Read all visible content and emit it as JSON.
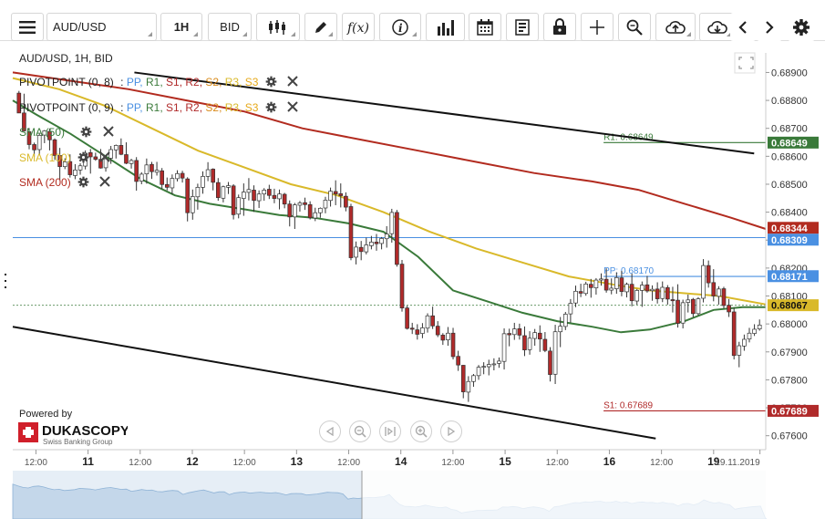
{
  "toolbar": {
    "menu_icon": "hamburger-icon",
    "symbol": "AUD/USD",
    "interval": "1H",
    "price_type": "BID",
    "icons": [
      "candle-type-icon",
      "pencil-icon",
      "function-icon",
      "info-icon",
      "bar-chart-icon",
      "calendar-icon",
      "document-icon",
      "lock-icon",
      "crosshair-icon",
      "zoom-icon",
      "cloud-upload-icon",
      "cloud-download-icon",
      "chevron-left-icon",
      "chevron-right-icon",
      "gear-icon"
    ]
  },
  "legend": {
    "title": "AUD/USD, 1H, BID",
    "pivot1": {
      "name": "PIVOTPOINT (0, 8)",
      "sep": ":",
      "pp": "PP,",
      "r1": "R1,",
      "s1": "S1,",
      "r2": "R2,",
      "s2": "S2,",
      "r3": "R3,",
      "s3": "S3"
    },
    "pivot2": {
      "name": "PIVOTPOINT (0, 9)",
      "sep": ":",
      "pp": "PP,",
      "r1": "R1,",
      "s1": "S1,",
      "r2": "R2,",
      "s2": "S2,",
      "r3": "R3,",
      "s3": "S3"
    },
    "sma50": "SMA (50)",
    "sma100": "SMA (100)",
    "sma200": "SMA (200)"
  },
  "branding": {
    "powered_by": "Powered by",
    "brand": "DUKASCOPY",
    "tagline": "Swiss Banking Group"
  },
  "colors": {
    "up": "#ffffff",
    "down": "#b02a2a",
    "wick": "#333333",
    "sma50": "#3a7a3a",
    "sma100": "#d9b92a",
    "sma200": "#b22b1f",
    "channel": "#111111",
    "pp": "#4a90e2",
    "r1": "#3a7a3a",
    "s1": "#b02a2a"
  },
  "chart_data": {
    "type": "candlestick",
    "ylim": [
      0.6755,
      0.6897
    ],
    "xlim": [
      0,
      130
    ],
    "y_ticks": [
      "0.68900",
      "0.68800",
      "0.68700",
      "0.68600",
      "0.68500",
      "0.68400",
      "0.68300",
      "0.68200",
      "0.68100",
      "0.68000",
      "0.67900",
      "0.67800",
      "0.67700",
      "0.67600"
    ],
    "x_labels": [
      {
        "label": "12:00",
        "x": 4
      },
      {
        "label": "11",
        "x": 13
      },
      {
        "label": "12:00",
        "x": 22
      },
      {
        "label": "12",
        "x": 31
      },
      {
        "label": "12:00",
        "x": 40
      },
      {
        "label": "13",
        "x": 49
      },
      {
        "label": "12:00",
        "x": 58
      },
      {
        "label": "14",
        "x": 67
      },
      {
        "label": "12:00",
        "x": 76
      },
      {
        "label": "15",
        "x": 85
      },
      {
        "label": "12:00",
        "x": 94
      },
      {
        "label": "16",
        "x": 103
      },
      {
        "label": "12:00",
        "x": 112
      },
      {
        "label": "19",
        "x": 121
      },
      {
        "label": "19.11.2019",
        "x": 129
      }
    ],
    "price_tags": [
      {
        "value": "0.68649",
        "color": "#3a7a3a"
      },
      {
        "value": "0.68344",
        "color": "#b22b1f"
      },
      {
        "value": "0.68309",
        "color": "#4a90e2"
      },
      {
        "value": "0.68171",
        "color": "#4a90e2"
      },
      {
        "value": "0.68067",
        "color": "#d9b92a"
      },
      {
        "value": "0.67689",
        "color": "#b02a2a"
      }
    ],
    "levels": [
      {
        "label": "R1: 0.68649",
        "value": 0.68649,
        "from": 102,
        "color": "#3a7a3a"
      },
      {
        "label": "PP: 0.68170",
        "value": 0.6817,
        "from": 102,
        "color": "#4a90e2"
      },
      {
        "label": "S1: 0.67689",
        "value": 0.67689,
        "from": 102,
        "color": "#b02a2a"
      }
    ],
    "hline": 0.68309,
    "current": 0.68067,
    "channel_upper": [
      [
        21,
        0.689
      ],
      [
        128,
        0.6861
      ]
    ],
    "channel_lower": [
      [
        0,
        0.6799
      ],
      [
        111,
        0.6759
      ]
    ],
    "sma50": [
      [
        0,
        0.688
      ],
      [
        4,
        0.6875
      ],
      [
        10,
        0.6868
      ],
      [
        16,
        0.686
      ],
      [
        22,
        0.6852
      ],
      [
        28,
        0.6846
      ],
      [
        34,
        0.6843
      ],
      [
        40,
        0.6841
      ],
      [
        46,
        0.6839
      ],
      [
        52,
        0.6838
      ],
      [
        58,
        0.6836
      ],
      [
        64,
        0.6833
      ],
      [
        70,
        0.6824
      ],
      [
        76,
        0.6812
      ],
      [
        82,
        0.6808
      ],
      [
        88,
        0.6804
      ],
      [
        94,
        0.6801
      ],
      [
        100,
        0.6799
      ],
      [
        105,
        0.6797
      ],
      [
        110,
        0.6798
      ],
      [
        116,
        0.6801
      ],
      [
        121,
        0.6805
      ],
      [
        126,
        0.6806
      ],
      [
        130,
        0.6806
      ]
    ],
    "sma100": [
      [
        0,
        0.6888
      ],
      [
        8,
        0.6884
      ],
      [
        16,
        0.6878
      ],
      [
        24,
        0.687
      ],
      [
        32,
        0.6862
      ],
      [
        40,
        0.6856
      ],
      [
        48,
        0.685
      ],
      [
        56,
        0.6846
      ],
      [
        64,
        0.684
      ],
      [
        72,
        0.6833
      ],
      [
        80,
        0.6827
      ],
      [
        88,
        0.6822
      ],
      [
        96,
        0.6817
      ],
      [
        104,
        0.6814
      ],
      [
        110,
        0.6812
      ],
      [
        116,
        0.6811
      ],
      [
        122,
        0.681
      ],
      [
        130,
        0.6807
      ]
    ],
    "sma200": [
      [
        0,
        0.689
      ],
      [
        10,
        0.6887
      ],
      [
        20,
        0.6884
      ],
      [
        30,
        0.688
      ],
      [
        40,
        0.6876
      ],
      [
        50,
        0.687
      ],
      [
        60,
        0.6866
      ],
      [
        70,
        0.6862
      ],
      [
        80,
        0.6858
      ],
      [
        90,
        0.6854
      ],
      [
        100,
        0.6851
      ],
      [
        108,
        0.6848
      ],
      [
        116,
        0.6843
      ],
      [
        124,
        0.6838
      ],
      [
        130,
        0.6834
      ]
    ],
    "candles": [
      [
        0.68826,
        0.68834,
        0.68758,
        0.68755
      ],
      [
        0.68755,
        0.68824,
        0.68689,
        0.68691
      ],
      [
        0.68688,
        0.68701,
        0.68625,
        0.68642
      ],
      [
        0.68642,
        0.68649,
        0.68598,
        0.68623
      ],
      [
        0.68624,
        0.68681,
        0.68604,
        0.68675
      ],
      [
        0.68676,
        0.68694,
        0.68647,
        0.68691
      ],
      [
        0.68689,
        0.68699,
        0.68621,
        0.68659
      ],
      [
        0.68659,
        0.68664,
        0.68587,
        0.68603
      ],
      [
        0.68603,
        0.6863,
        0.68515,
        0.68563
      ],
      [
        0.68563,
        0.68593,
        0.68554,
        0.6858
      ],
      [
        0.68581,
        0.68607,
        0.68524,
        0.68534
      ],
      [
        0.68531,
        0.68572,
        0.68518,
        0.68551
      ],
      [
        0.68551,
        0.68575,
        0.68534,
        0.68566
      ],
      [
        0.68565,
        0.68621,
        0.68553,
        0.68611
      ],
      [
        0.68613,
        0.68626,
        0.68538,
        0.68598
      ],
      [
        0.68598,
        0.68613,
        0.68584,
        0.68589
      ],
      [
        0.68589,
        0.68626,
        0.68556,
        0.68558
      ],
      [
        0.68559,
        0.68604,
        0.68545,
        0.68591
      ],
      [
        0.68593,
        0.68637,
        0.68573,
        0.68624
      ],
      [
        0.68623,
        0.68642,
        0.68592,
        0.68639
      ],
      [
        0.68639,
        0.68664,
        0.68604,
        0.68607
      ],
      [
        0.68606,
        0.6865,
        0.68572,
        0.68575
      ],
      [
        0.68574,
        0.68591,
        0.68556,
        0.68585
      ],
      [
        0.68585,
        0.68597,
        0.68477,
        0.6851
      ],
      [
        0.68511,
        0.68543,
        0.685,
        0.68536
      ],
      [
        0.68537,
        0.68592,
        0.68502,
        0.68569
      ],
      [
        0.68571,
        0.6858,
        0.68519,
        0.68545
      ],
      [
        0.68543,
        0.6858,
        0.68531,
        0.6855
      ],
      [
        0.68548,
        0.68558,
        0.68484,
        0.68499
      ],
      [
        0.68499,
        0.68524,
        0.68478,
        0.68489
      ],
      [
        0.68487,
        0.68535,
        0.68464,
        0.68521
      ],
      [
        0.6852,
        0.6855,
        0.6851,
        0.68538
      ],
      [
        0.68539,
        0.68548,
        0.68506,
        0.68522
      ],
      [
        0.68519,
        0.68525,
        0.68367,
        0.68398
      ],
      [
        0.68398,
        0.68481,
        0.68373,
        0.68456
      ],
      [
        0.68455,
        0.68502,
        0.68409,
        0.68489
      ],
      [
        0.68489,
        0.68546,
        0.68466,
        0.68528
      ],
      [
        0.68528,
        0.68579,
        0.68511,
        0.68552
      ],
      [
        0.68554,
        0.68557,
        0.68478,
        0.68507
      ],
      [
        0.68506,
        0.68522,
        0.68441,
        0.68452
      ],
      [
        0.6845,
        0.68495,
        0.68435,
        0.68491
      ],
      [
        0.68489,
        0.68508,
        0.68465,
        0.68495
      ],
      [
        0.68494,
        0.685,
        0.68374,
        0.68391
      ],
      [
        0.68393,
        0.68463,
        0.68378,
        0.68452
      ],
      [
        0.68449,
        0.68503,
        0.68387,
        0.68472
      ],
      [
        0.68471,
        0.68522,
        0.68442,
        0.68481
      ],
      [
        0.68479,
        0.68496,
        0.68401,
        0.68442
      ],
      [
        0.68441,
        0.68478,
        0.68415,
        0.68465
      ],
      [
        0.68465,
        0.68486,
        0.68441,
        0.68479
      ],
      [
        0.68482,
        0.68498,
        0.68447,
        0.6846
      ],
      [
        0.6846,
        0.68484,
        0.68432,
        0.68449
      ],
      [
        0.68448,
        0.68481,
        0.6841,
        0.68465
      ],
      [
        0.68464,
        0.68469,
        0.68414,
        0.68429
      ],
      [
        0.68429,
        0.68442,
        0.68349,
        0.68383
      ],
      [
        0.68383,
        0.68433,
        0.6834,
        0.68426
      ],
      [
        0.68425,
        0.6844,
        0.68402,
        0.68433
      ],
      [
        0.68434,
        0.68452,
        0.68408,
        0.68427
      ],
      [
        0.68427,
        0.68439,
        0.68374,
        0.6838
      ],
      [
        0.68379,
        0.68416,
        0.68368,
        0.68398
      ],
      [
        0.68398,
        0.68417,
        0.6838,
        0.68414
      ],
      [
        0.68415,
        0.68455,
        0.68396,
        0.68443
      ],
      [
        0.68442,
        0.68488,
        0.6842,
        0.68475
      ],
      [
        0.68474,
        0.68514,
        0.68425,
        0.68465
      ],
      [
        0.68466,
        0.68503,
        0.68417,
        0.68459
      ],
      [
        0.68457,
        0.68471,
        0.68403,
        0.68418
      ],
      [
        0.6842,
        0.6843,
        0.68228,
        0.68237
      ],
      [
        0.68239,
        0.68295,
        0.68213,
        0.68275
      ],
      [
        0.68274,
        0.68297,
        0.68228,
        0.68259
      ],
      [
        0.68258,
        0.68309,
        0.68249,
        0.68283
      ],
      [
        0.6828,
        0.68315,
        0.68267,
        0.68293
      ],
      [
        0.68293,
        0.68322,
        0.68262,
        0.68287
      ],
      [
        0.68288,
        0.68311,
        0.68267,
        0.68306
      ],
      [
        0.68305,
        0.6835,
        0.68273,
        0.68322
      ],
      [
        0.68323,
        0.68412,
        0.68291,
        0.68399
      ],
      [
        0.68399,
        0.68408,
        0.68205,
        0.68213
      ],
      [
        0.68214,
        0.68229,
        0.68044,
        0.68057
      ],
      [
        0.68057,
        0.68065,
        0.6798,
        0.67984
      ],
      [
        0.67985,
        0.68004,
        0.67964,
        0.67981
      ],
      [
        0.67979,
        0.67999,
        0.67944,
        0.67963
      ],
      [
        0.67966,
        0.68003,
        0.67949,
        0.67986
      ],
      [
        0.67985,
        0.68038,
        0.67969,
        0.68029
      ],
      [
        0.68029,
        0.68062,
        0.67982,
        0.67993
      ],
      [
        0.67992,
        0.6801,
        0.67953,
        0.67961
      ],
      [
        0.6796,
        0.67967,
        0.67925,
        0.67942
      ],
      [
        0.67943,
        0.67989,
        0.67922,
        0.67967
      ],
      [
        0.67967,
        0.67986,
        0.67873,
        0.67883
      ],
      [
        0.67884,
        0.67904,
        0.67832,
        0.67853
      ],
      [
        0.67852,
        0.67853,
        0.67734,
        0.67757
      ],
      [
        0.67756,
        0.67813,
        0.67721,
        0.67794
      ],
      [
        0.67794,
        0.67821,
        0.67775,
        0.67815
      ],
      [
        0.67815,
        0.67853,
        0.678,
        0.67845
      ],
      [
        0.67846,
        0.67863,
        0.6782,
        0.67848
      ],
      [
        0.67847,
        0.67872,
        0.67816,
        0.67855
      ],
      [
        0.67856,
        0.67877,
        0.67834,
        0.67857
      ],
      [
        0.67859,
        0.6788,
        0.67843,
        0.67867
      ],
      [
        0.67866,
        0.67984,
        0.67837,
        0.67965
      ],
      [
        0.67966,
        0.67983,
        0.6792,
        0.67961
      ],
      [
        0.67962,
        0.68004,
        0.67943,
        0.67982
      ],
      [
        0.67983,
        0.68001,
        0.67944,
        0.6796
      ],
      [
        0.67958,
        0.67991,
        0.67885,
        0.67907
      ],
      [
        0.67908,
        0.67974,
        0.6789,
        0.67949
      ],
      [
        0.67948,
        0.67982,
        0.67922,
        0.67969
      ],
      [
        0.67967,
        0.67995,
        0.679,
        0.67946
      ],
      [
        0.67945,
        0.67971,
        0.67899,
        0.67905
      ],
      [
        0.67903,
        0.67917,
        0.67794,
        0.67819
      ],
      [
        0.6782,
        0.67997,
        0.67785,
        0.67972
      ],
      [
        0.67972,
        0.68025,
        0.67917,
        0.67992
      ],
      [
        0.67991,
        0.68043,
        0.67978,
        0.68035
      ],
      [
        0.68036,
        0.68089,
        0.68005,
        0.68074
      ],
      [
        0.68075,
        0.68137,
        0.6806,
        0.68117
      ],
      [
        0.68116,
        0.68144,
        0.68096,
        0.6811
      ],
      [
        0.68109,
        0.68151,
        0.68101,
        0.68143
      ],
      [
        0.68142,
        0.68161,
        0.68094,
        0.6813
      ],
      [
        0.68129,
        0.68164,
        0.68105,
        0.68157
      ],
      [
        0.68157,
        0.68181,
        0.68137,
        0.68161
      ],
      [
        0.6816,
        0.68199,
        0.68112,
        0.68121
      ],
      [
        0.68121,
        0.68163,
        0.68106,
        0.68128
      ],
      [
        0.68126,
        0.68185,
        0.68108,
        0.68166
      ],
      [
        0.68165,
        0.6819,
        0.68099,
        0.68116
      ],
      [
        0.68115,
        0.68148,
        0.68095,
        0.68142
      ],
      [
        0.68142,
        0.6818,
        0.68063,
        0.68083
      ],
      [
        0.68082,
        0.68125,
        0.68069,
        0.6812
      ],
      [
        0.6812,
        0.68152,
        0.68061,
        0.68139
      ],
      [
        0.6814,
        0.68172,
        0.68112,
        0.68118
      ],
      [
        0.68119,
        0.68138,
        0.68083,
        0.68124
      ],
      [
        0.68125,
        0.68149,
        0.68073,
        0.6809
      ],
      [
        0.68091,
        0.68152,
        0.68078,
        0.68131
      ],
      [
        0.6813,
        0.68139,
        0.68069,
        0.68089
      ],
      [
        0.68087,
        0.68133,
        0.68041,
        0.68083
      ],
      [
        0.68085,
        0.68142,
        0.67987,
        0.68002
      ],
      [
        0.68003,
        0.68087,
        0.67984,
        0.68076
      ],
      [
        0.68077,
        0.68105,
        0.68041,
        0.68086
      ],
      [
        0.68088,
        0.68093,
        0.68024,
        0.68037
      ],
      [
        0.68037,
        0.68096,
        0.6803,
        0.6809
      ],
      [
        0.68092,
        0.68232,
        0.68077,
        0.68209
      ],
      [
        0.68209,
        0.68227,
        0.6813,
        0.68147
      ],
      [
        0.68148,
        0.68196,
        0.68081,
        0.681
      ],
      [
        0.68099,
        0.68135,
        0.68069,
        0.68125
      ],
      [
        0.68126,
        0.68133,
        0.68055,
        0.68066
      ],
      [
        0.68067,
        0.68089,
        0.68025,
        0.68043
      ],
      [
        0.68043,
        0.68058,
        0.67873,
        0.67887
      ],
      [
        0.67888,
        0.67936,
        0.67845,
        0.67922
      ],
      [
        0.67921,
        0.67962,
        0.67904,
        0.67945
      ],
      [
        0.67946,
        0.67986,
        0.67934,
        0.67967
      ],
      [
        0.67966,
        0.67999,
        0.67957,
        0.67981
      ],
      [
        0.67982,
        0.68016,
        0.67976,
        0.67996
      ]
    ]
  }
}
